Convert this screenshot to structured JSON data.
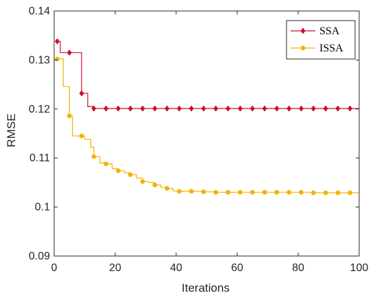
{
  "chart_data": {
    "type": "line",
    "xlabel": "Iterations",
    "ylabel": "RMSE",
    "xlim": [
      0,
      100
    ],
    "ylim": [
      0.09,
      0.14
    ],
    "x_ticks": [
      "0",
      "20",
      "40",
      "60",
      "80",
      "100"
    ],
    "y_ticks": [
      "0.09",
      "0.1",
      "0.11",
      "0.12",
      "0.13",
      "0.14"
    ],
    "grid": false,
    "legend_position": "top-right",
    "series": [
      {
        "name": "SSA",
        "color": "#C8102E",
        "marker": "diamond",
        "steps": [
          [
            1,
            0.1338
          ],
          [
            2,
            0.1315
          ],
          [
            9,
            0.1232
          ],
          [
            11,
            0.1205
          ],
          [
            13,
            0.1201
          ],
          [
            100,
            0.1201
          ]
        ],
        "marker_x": [
          1,
          5,
          9,
          13,
          17,
          21,
          25,
          29,
          33,
          37,
          41,
          45,
          49,
          53,
          57,
          61,
          65,
          69,
          73,
          77,
          81,
          85,
          89,
          93,
          97
        ],
        "marker_y": [
          0.1338,
          0.1315,
          0.1232,
          0.1201,
          0.1201,
          0.1201,
          0.1201,
          0.1201,
          0.1201,
          0.1201,
          0.1201,
          0.1201,
          0.1201,
          0.1201,
          0.1201,
          0.1201,
          0.1201,
          0.1201,
          0.1201,
          0.1201,
          0.1201,
          0.1201,
          0.1201,
          0.1201,
          0.1201
        ]
      },
      {
        "name": "ISSA",
        "color": "#F5B301",
        "marker": "circle",
        "steps": [
          [
            1,
            0.1302
          ],
          [
            3,
            0.1246
          ],
          [
            5,
            0.1186
          ],
          [
            6,
            0.1145
          ],
          [
            9,
            0.1145
          ],
          [
            10,
            0.1138
          ],
          [
            12,
            0.1122
          ],
          [
            13,
            0.1103
          ],
          [
            15,
            0.109
          ],
          [
            17,
            0.1088
          ],
          [
            19,
            0.1078
          ],
          [
            21,
            0.1074
          ],
          [
            23,
            0.107
          ],
          [
            25,
            0.1066
          ],
          [
            27,
            0.1059
          ],
          [
            29,
            0.1052
          ],
          [
            31,
            0.105
          ],
          [
            33,
            0.1045
          ],
          [
            35,
            0.104
          ],
          [
            37,
            0.1038
          ],
          [
            39,
            0.1033
          ],
          [
            41,
            0.1032
          ],
          [
            49,
            0.1031
          ],
          [
            53,
            0.103
          ],
          [
            85,
            0.1029
          ],
          [
            100,
            0.1029
          ]
        ],
        "marker_x": [
          1,
          5,
          9,
          13,
          17,
          21,
          25,
          29,
          33,
          37,
          41,
          45,
          49,
          53,
          57,
          61,
          65,
          69,
          73,
          77,
          81,
          85,
          89,
          93,
          97
        ],
        "marker_y": [
          0.1302,
          0.1186,
          0.1145,
          0.1103,
          0.1088,
          0.1074,
          0.1066,
          0.1052,
          0.1045,
          0.1038,
          0.1032,
          0.1032,
          0.1031,
          0.103,
          0.103,
          0.103,
          0.103,
          0.103,
          0.103,
          0.103,
          0.103,
          0.1029,
          0.1029,
          0.1029,
          0.1029
        ]
      }
    ]
  }
}
